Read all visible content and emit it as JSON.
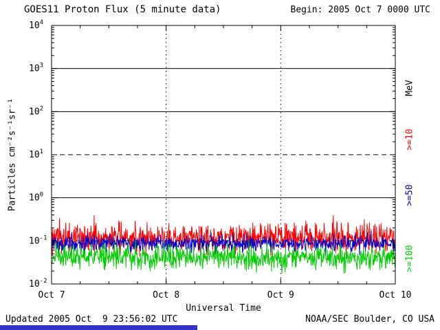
{
  "header": {
    "title": "GOES11 Proton Flux (5 minute data)",
    "begin_label": "Begin: 2005 Oct 7 0000 UTC"
  },
  "footer": {
    "updated": "Updated 2005 Oct  9 23:56:02 UTC",
    "source": "NOAA/SEC Boulder, CO USA"
  },
  "decor": {
    "bottom_bar_color": "#3333cc"
  },
  "chart_data": {
    "type": "line",
    "title": "GOES11 Proton Flux (5 minute data)",
    "subtitle": "Begin: 2005 Oct 7 0000 UTC",
    "xlabel": "Universal Time",
    "ylabel": "Particles cm-2 s-1 sr-1",
    "ylabel_display": "Particles cm⁻²s⁻¹sr⁻¹",
    "yscale": "log",
    "ylim": [
      0.01,
      10000
    ],
    "y_tick_exponents": [
      4,
      3,
      2,
      1,
      0,
      -1,
      -2
    ],
    "x_tick_labels": [
      "Oct 7",
      "Oct 8",
      "Oct 9",
      "Oct 10"
    ],
    "cadence": "5 minute",
    "points_per_day": 288,
    "grid": {
      "horizontal_solid_exponents": [
        3,
        2,
        0
      ],
      "horizontal_dashed_exponents": [
        1,
        -1
      ],
      "vertical_dotted_at_days": [
        1,
        2
      ]
    },
    "right_axis_labels": [
      {
        "text": "MeV",
        "color": "#000000"
      },
      {
        "text": ">=10",
        "color": "#ff0000"
      },
      {
        "text": ">=50",
        "color": "#0000cc"
      },
      {
        "text": ">=100",
        "color": "#00cc00"
      }
    ],
    "series": [
      {
        "name": ">=10 MeV",
        "color": "#ff0000",
        "units": "Particles cm-2 s-1 sr-1",
        "description": "flat noisy background",
        "typical": 0.12,
        "approx_min": 0.05,
        "approx_max": 0.45,
        "log10_mean": -0.92,
        "log10_sd": 0.17
      },
      {
        "name": ">=50 MeV",
        "color": "#0000cc",
        "units": "Particles cm-2 s-1 sr-1",
        "description": "flat noisy background",
        "typical": 0.085,
        "approx_min": 0.05,
        "approx_max": 0.15,
        "log10_mean": -1.06,
        "log10_sd": 0.09
      },
      {
        "name": ">=100 MeV",
        "color": "#00cc00",
        "units": "Particles cm-2 s-1 sr-1",
        "description": "flat noisy background",
        "typical": 0.042,
        "approx_min": 0.02,
        "approx_max": 0.09,
        "log10_mean": -1.38,
        "log10_sd": 0.13
      }
    ],
    "legend_position": "right-edge-vertical",
    "frame": true
  }
}
